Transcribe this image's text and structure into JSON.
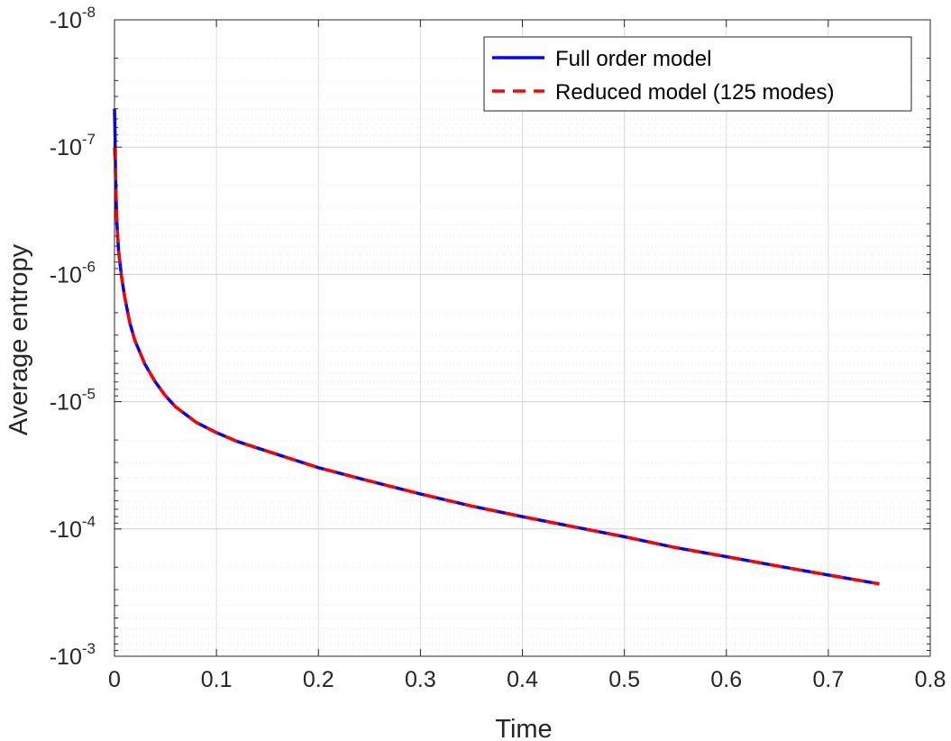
{
  "chart_data": {
    "type": "line",
    "xlabel": "Time",
    "ylabel": "Average entropy",
    "xlim": [
      0,
      0.8
    ],
    "x_ticks": [
      0,
      0.1,
      0.2,
      0.3,
      0.4,
      0.5,
      0.6,
      0.7,
      0.8
    ],
    "x_tick_labels": [
      "0",
      "0.1",
      "0.2",
      "0.3",
      "0.4",
      "0.5",
      "0.6",
      "0.7",
      "0.8"
    ],
    "y_scale": "log (negative values, magnitude increasing downward)",
    "ylim": [
      -1e-08,
      -0.001
    ],
    "y_ticks": [
      {
        "base": "-10",
        "exp": "-8"
      },
      {
        "base": "-10",
        "exp": "-7"
      },
      {
        "base": "-10",
        "exp": "-6"
      },
      {
        "base": "-10",
        "exp": "-5"
      },
      {
        "base": "-10",
        "exp": "-4"
      },
      {
        "base": "-10",
        "exp": "-3"
      }
    ],
    "grid": true,
    "legend_position": "top-right",
    "x": [
      0,
      0.0005,
      0.001,
      0.002,
      0.004,
      0.007,
      0.01,
      0.015,
      0.02,
      0.03,
      0.04,
      0.05,
      0.06,
      0.08,
      0.1,
      0.12,
      0.15,
      0.2,
      0.25,
      0.3,
      0.35,
      0.4,
      0.45,
      0.5,
      0.55,
      0.6,
      0.65,
      0.7,
      0.75
    ],
    "series": [
      {
        "name": "Full order model",
        "color": "#0000ff",
        "style": "solid",
        "values": [
          -5e-08,
          -8e-08,
          -1.5e-07,
          -3.5e-07,
          -6.5e-07,
          -1.05e-06,
          -1.5e-06,
          -2.4e-06,
          -3.3e-06,
          -5.1e-06,
          -7e-06,
          -9e-06,
          -1.1e-05,
          -1.45e-05,
          -1.75e-05,
          -2.05e-05,
          -2.45e-05,
          -3.3e-05,
          -4.2e-05,
          -5.3e-05,
          -6.6e-05,
          -8e-05,
          -9.6e-05,
          -0.000115,
          -0.00014,
          -0.000165,
          -0.000195,
          -0.00023,
          -0.00027
        ]
      },
      {
        "name": "Reduced model (125 modes)",
        "color": "#ff0000",
        "style": "dashed",
        "values": [
          -1e-07,
          -1.2e-07,
          -1.5e-07,
          -3.5e-07,
          -6.5e-07,
          -1.05e-06,
          -1.5e-06,
          -2.4e-06,
          -3.3e-06,
          -5.1e-06,
          -7e-06,
          -9e-06,
          -1.1e-05,
          -1.45e-05,
          -1.75e-05,
          -2.05e-05,
          -2.45e-05,
          -3.3e-05,
          -4.2e-05,
          -5.3e-05,
          -6.6e-05,
          -8e-05,
          -9.6e-05,
          -0.000115,
          -0.00014,
          -0.000165,
          -0.000195,
          -0.00023,
          -0.00027
        ]
      }
    ]
  }
}
